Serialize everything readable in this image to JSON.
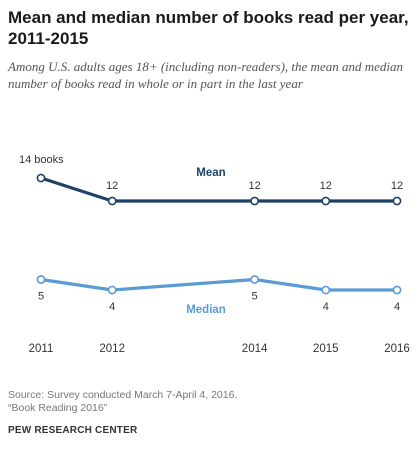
{
  "header": {
    "title": "Mean and median number of books read per year, 2011-2015",
    "subtitle": "Among U.S. adults ages 18+ (including non-readers), the mean and median number of books read in whole or in part in the last year"
  },
  "footer": {
    "source_line1": "Source: Survey conducted March 7-April 4, 2016.",
    "source_line2": "“Book Reading 2016”",
    "credit": "PEW RESEARCH CENTER"
  },
  "chart_data": {
    "type": "line",
    "title": "Mean and median number of books read per year, 2011-2015",
    "x": [
      2011,
      2012,
      2014,
      2015,
      2016
    ],
    "x_tick_labels": [
      "2011",
      "2012",
      "2014",
      "2015",
      "2016"
    ],
    "xlim": [
      2011,
      2016
    ],
    "grid": false,
    "legend": "inline labels",
    "series": [
      {
        "name": "Mean",
        "values": [
          14,
          12,
          12,
          12,
          12
        ],
        "data_labels": [
          "14 books",
          "12",
          "12",
          "12",
          "12"
        ],
        "color": "#1d4269"
      },
      {
        "name": "Median",
        "values": [
          5,
          4,
          5,
          4,
          4
        ],
        "data_labels": [
          "5",
          "4",
          "5",
          "4",
          "4"
        ],
        "color": "#5b9bd5"
      }
    ]
  }
}
